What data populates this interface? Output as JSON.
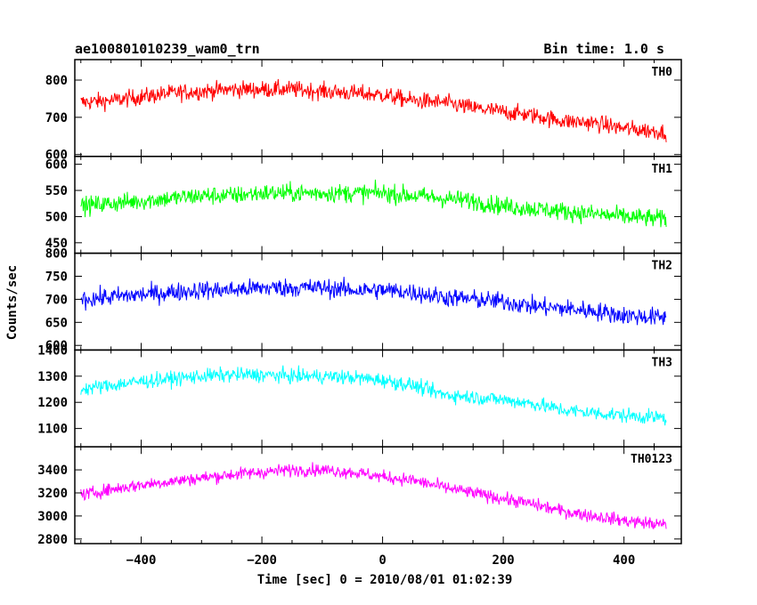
{
  "header": {
    "title": "ae100801010239_wam0_trn",
    "bin_time": "Bin time: 1.0 s"
  },
  "xlabel": "Time [sec] 0 = 2010/08/01 01:02:39",
  "ylabel": "Counts/sec",
  "chart_data": [
    {
      "type": "line",
      "name": "TH0",
      "color": "#ff0000",
      "xlim": [
        -510,
        495
      ],
      "ylim": [
        595,
        855
      ],
      "x_ticks": [
        -400,
        -200,
        0,
        200,
        400
      ],
      "y_ticks": [
        600,
        700,
        800
      ],
      "x": [
        -500,
        -450,
        -400,
        -350,
        -300,
        -250,
        -200,
        -150,
        -100,
        -50,
        0,
        50,
        100,
        150,
        200,
        250,
        300,
        350,
        400,
        470
      ],
      "values": [
        740,
        745,
        755,
        765,
        770,
        775,
        775,
        775,
        770,
        765,
        760,
        745,
        740,
        725,
        715,
        705,
        690,
        685,
        670,
        660
      ],
      "noise": 45
    },
    {
      "type": "line",
      "name": "TH1",
      "color": "#00ff00",
      "xlim": [
        -510,
        495
      ],
      "ylim": [
        430,
        615
      ],
      "x_ticks": [
        -400,
        -200,
        0,
        200,
        400
      ],
      "y_ticks": [
        450,
        500,
        550,
        600
      ],
      "x": [
        -500,
        -450,
        -400,
        -350,
        -300,
        -250,
        -200,
        -150,
        -100,
        -50,
        0,
        50,
        100,
        150,
        200,
        250,
        300,
        350,
        400,
        470
      ],
      "values": [
        520,
        525,
        530,
        535,
        540,
        540,
        545,
        545,
        545,
        545,
        545,
        540,
        535,
        530,
        520,
        515,
        510,
        505,
        500,
        495
      ],
      "noise": 35
    },
    {
      "type": "line",
      "name": "TH2",
      "color": "#0000ff",
      "xlim": [
        -510,
        495
      ],
      "ylim": [
        590,
        800
      ],
      "x_ticks": [
        -400,
        -200,
        0,
        200,
        400
      ],
      "y_ticks": [
        600,
        650,
        700,
        750,
        800
      ],
      "x": [
        -500,
        -450,
        -400,
        -350,
        -300,
        -250,
        -200,
        -150,
        -100,
        -50,
        0,
        50,
        100,
        150,
        200,
        250,
        300,
        350,
        400,
        470
      ],
      "values": [
        700,
        705,
        710,
        715,
        720,
        720,
        725,
        725,
        725,
        720,
        720,
        715,
        705,
        700,
        695,
        685,
        680,
        675,
        665,
        660
      ],
      "noise": 40
    },
    {
      "type": "line",
      "name": "TH3",
      "color": "#00ffff",
      "xlim": [
        -510,
        495
      ],
      "ylim": [
        1030,
        1400
      ],
      "x_ticks": [
        -400,
        -200,
        0,
        200,
        400
      ],
      "y_ticks": [
        1100,
        1200,
        1300,
        1400
      ],
      "x": [
        -500,
        -450,
        -400,
        -350,
        -300,
        -250,
        -200,
        -150,
        -100,
        -50,
        0,
        50,
        100,
        150,
        200,
        250,
        300,
        350,
        400,
        470
      ],
      "values": [
        1250,
        1265,
        1280,
        1290,
        1300,
        1305,
        1305,
        1300,
        1300,
        1295,
        1285,
        1265,
        1230,
        1220,
        1210,
        1195,
        1170,
        1160,
        1150,
        1140
      ],
      "noise": 55
    },
    {
      "type": "line",
      "name": "TH0123",
      "color": "#ff00ff",
      "xlim": [
        -510,
        495
      ],
      "ylim": [
        2760,
        3600
      ],
      "x_ticks": [
        -400,
        -200,
        0,
        200,
        400
      ],
      "y_ticks": [
        2800,
        3000,
        3200,
        3400
      ],
      "x": [
        -500,
        -450,
        -400,
        -350,
        -300,
        -250,
        -200,
        -150,
        -100,
        -50,
        0,
        50,
        100,
        150,
        200,
        250,
        300,
        350,
        400,
        470
      ],
      "values": [
        3180,
        3230,
        3270,
        3300,
        3330,
        3360,
        3380,
        3400,
        3400,
        3380,
        3340,
        3310,
        3250,
        3200,
        3150,
        3100,
        3040,
        3000,
        2960,
        2920
      ],
      "noise": 110
    }
  ]
}
